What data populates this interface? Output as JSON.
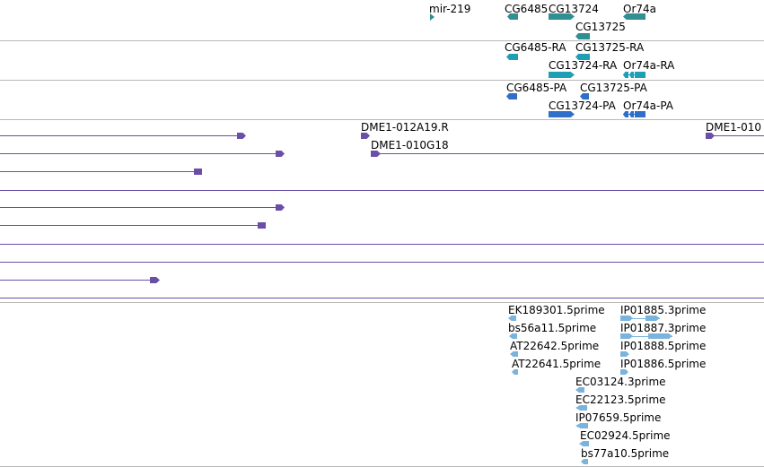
{
  "colors": {
    "gene": "#2f8f92",
    "transcript": "#1f9fb5",
    "protein": "#2f6fc8",
    "clone": "#6a4fa8",
    "est": "#7ab3dc",
    "divider": "#b8b8b8"
  },
  "tracks": {
    "genes": {
      "features": [
        {
          "label": "mir-219"
        },
        {
          "label": "CG6485"
        },
        {
          "label": "CG13724"
        },
        {
          "label": "Or74a"
        },
        {
          "label": "CG13725"
        }
      ]
    },
    "transcripts": {
      "features": [
        {
          "label": "CG6485-RA"
        },
        {
          "label": "CG13725-RA"
        },
        {
          "label": "CG13724-RA"
        },
        {
          "label": "Or74a-RA"
        }
      ]
    },
    "proteins": {
      "features": [
        {
          "label": "CG6485-PA"
        },
        {
          "label": "CG13725-PA"
        },
        {
          "label": "CG13724-PA"
        },
        {
          "label": "Or74a-PA"
        }
      ]
    },
    "clones": {
      "features": [
        {
          "label": "DME1-012A19.R"
        },
        {
          "label": "DME1-010G18"
        },
        {
          "label": "DME1-010"
        }
      ]
    },
    "ests": {
      "features": [
        {
          "label": "EK189301.5prime"
        },
        {
          "label": "IP01885.3prime"
        },
        {
          "label": "bs56a11.5prime"
        },
        {
          "label": "IP01887.3prime"
        },
        {
          "label": "AT22642.5prime"
        },
        {
          "label": "IP01888.5prime"
        },
        {
          "label": "AT22641.5prime"
        },
        {
          "label": "IP01886.5prime"
        },
        {
          "label": "EC03124.3prime"
        },
        {
          "label": "EC22123.5prime"
        },
        {
          "label": "IP07659.5prime"
        },
        {
          "label": "EC02924.5prime"
        },
        {
          "label": "bs77a10.5prime"
        }
      ]
    }
  }
}
